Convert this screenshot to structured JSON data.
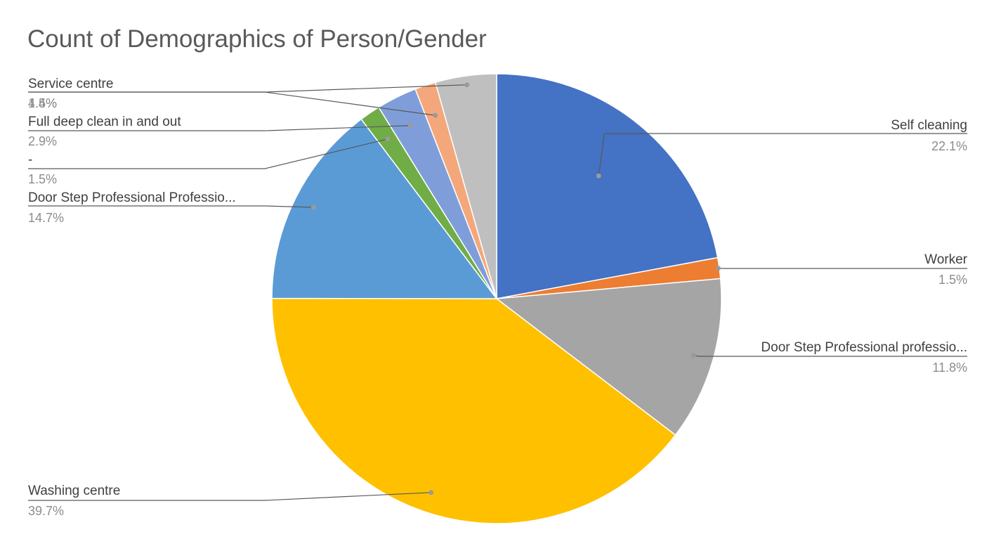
{
  "chart_data": {
    "type": "pie",
    "title": "Count of Demographics of Person/Gender",
    "legend": "none",
    "slices": [
      {
        "label": "Self cleaning",
        "value": 22.1,
        "display_value": "22.1%",
        "color": "#4472C4"
      },
      {
        "label": "Worker",
        "value": 1.5,
        "display_value": "1.5%",
        "color": "#ED7D31"
      },
      {
        "label": "Door Step Professional professio...",
        "value": 11.8,
        "display_value": "11.8%",
        "color": "#A5A5A5"
      },
      {
        "label": "Washing centre",
        "value": 39.7,
        "display_value": "39.7%",
        "color": "#FFC000"
      },
      {
        "label": "Door Step Professional Professio...",
        "value": 14.7,
        "display_value": "14.7%",
        "color": "#5B9BD5"
      },
      {
        "label": "-",
        "value": 1.5,
        "display_value": "1.5%",
        "color": "#70AD47"
      },
      {
        "label": "Full deep clean in and out",
        "value": 2.9,
        "display_value": "2.9%",
        "color": "#7F9ED9"
      },
      {
        "label": "Service centre",
        "value": 1.5,
        "display_value": "1.5%",
        "color": "#F4A77A"
      },
      {
        "label": "",
        "value": 4.4,
        "display_value": "4.4%",
        "color": "#BFBFBF"
      }
    ]
  }
}
